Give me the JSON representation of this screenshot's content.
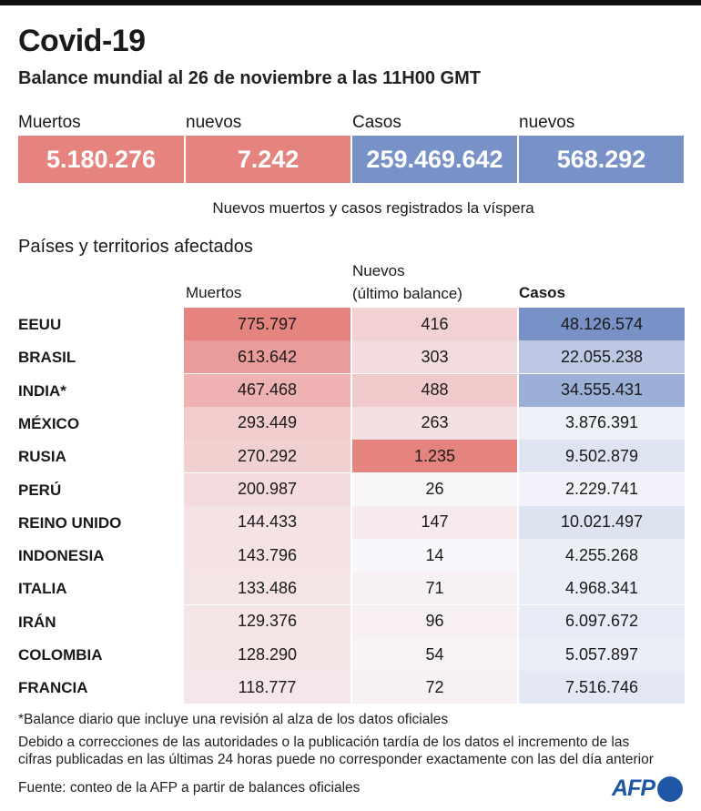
{
  "title": "Covid-19",
  "subtitle": "Balance mundial al 26 de noviembre a las 11H00 GMT",
  "kpis": [
    {
      "label": "Muertos",
      "value": "5.180.276",
      "color": "#e5847f"
    },
    {
      "label": "nuevos",
      "value": "7.242",
      "color": "#e5847f"
    },
    {
      "label": "Casos",
      "value": "259.469.642",
      "color": "#7892c8"
    },
    {
      "label": "nuevos",
      "value": "568.292",
      "color": "#7892c8"
    }
  ],
  "note": "Nuevos muertos y casos registrados la víspera",
  "section_title": "Países y territorios afectados",
  "chart_data": {
    "type": "table",
    "columns": {
      "muertos": "Muertos",
      "nuevos_1": "Nuevos",
      "nuevos_2": "(último balance)",
      "casos": "Casos"
    },
    "colors": {
      "deaths_max": "#e5847f",
      "cases_max": "#7892c8",
      "min": "#f8f8fc"
    },
    "rows": [
      {
        "country": "EEUU",
        "muertos": "775.797",
        "nuevos": "416",
        "casos": "48.126.574"
      },
      {
        "country": "BRASIL",
        "muertos": "613.642",
        "nuevos": "303",
        "casos": "22.055.238"
      },
      {
        "country": "INDIA*",
        "muertos": "467.468",
        "nuevos": "488",
        "casos": "34.555.431"
      },
      {
        "country": "MÉXICO",
        "muertos": "293.449",
        "nuevos": "263",
        "casos": "3.876.391"
      },
      {
        "country": "RUSIA",
        "muertos": "270.292",
        "nuevos": "1.235",
        "casos": "9.502.879"
      },
      {
        "country": "PERÚ",
        "muertos": "200.987",
        "nuevos": "26",
        "casos": "2.229.741"
      },
      {
        "country": "REINO UNIDO",
        "muertos": "144.433",
        "nuevos": "147",
        "casos": "10.021.497"
      },
      {
        "country": "INDONESIA",
        "muertos": "143.796",
        "nuevos": "14",
        "casos": "4.255.268"
      },
      {
        "country": "ITALIA",
        "muertos": "133.486",
        "nuevos": "71",
        "casos": "4.968.341"
      },
      {
        "country": "IRÁN",
        "muertos": "129.376",
        "nuevos": "96",
        "casos": "6.097.672"
      },
      {
        "country": "COLOMBIA",
        "muertos": "128.290",
        "nuevos": "54",
        "casos": "5.057.897"
      },
      {
        "country": "FRANCIA",
        "muertos": "118.777",
        "nuevos": "72",
        "casos": "7.516.746"
      }
    ]
  },
  "footnotes": [
    "*Balance diario que incluye una revisión al alza de los datos oficiales",
    "Debido a correcciones de las autoridades o la publicación tardía de los datos el incremento de las",
    "cifras publicadas en las últimas 24 horas puede no corresponder exactamente con las del día anterior"
  ],
  "source": "Fuente: conteo de la AFP a partir de balances oficiales",
  "logo": {
    "text": "AFP",
    "color": "#1f57a6"
  }
}
